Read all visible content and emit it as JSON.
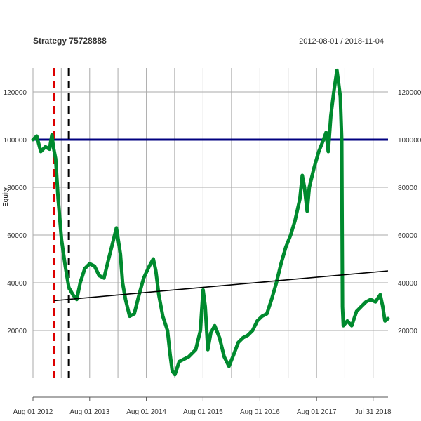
{
  "chart_data": {
    "type": "line",
    "title": "Strategy 75728888",
    "date_range": "2012-08-01 / 2018-11-04",
    "ylabel": "Equity",
    "x_start": "2012-08-01",
    "x_end": "2018-11-04",
    "ylim": [
      0,
      130000
    ],
    "x_tick_labels": [
      {
        "date": "2012-08-01",
        "label": "Aug 01 2012"
      },
      {
        "date": "2013-08-01",
        "label": "Aug 01 2013"
      },
      {
        "date": "2014-08-01",
        "label": "Aug 01 2014"
      },
      {
        "date": "2015-08-01",
        "label": "Aug 01 2015"
      },
      {
        "date": "2016-08-01",
        "label": "Aug 01 2016"
      },
      {
        "date": "2017-08-01",
        "label": "Aug 01 2017"
      },
      {
        "date": "2018-07-31",
        "label": "Jul 31 2018"
      }
    ],
    "y_ticks": [
      20000,
      40000,
      60000,
      80000,
      100000,
      120000
    ],
    "y_tick_labels": [
      "20000",
      "40000",
      "60000",
      "80000",
      "100000",
      "120000"
    ],
    "grid": true,
    "reference_lines": [
      {
        "type": "horizontal",
        "value": 100000,
        "color": "#000080"
      },
      {
        "type": "vertical",
        "date": "2012-12-15",
        "color": "#dd0000",
        "style": "dashed"
      },
      {
        "type": "vertical",
        "date": "2013-03-20",
        "color": "#000000",
        "style": "dashed"
      }
    ],
    "trend_line": {
      "color": "#000000",
      "start": {
        "date": "2012-12-15",
        "y": 32500
      },
      "end": {
        "date": "2018-11-04",
        "y": 45000
      }
    },
    "series": [
      {
        "color": "#008a2e",
        "points": [
          [
            "2012-08-01",
            100000
          ],
          [
            "2012-08-25",
            101500
          ],
          [
            "2012-09-20",
            95000
          ],
          [
            "2012-10-20",
            97000
          ],
          [
            "2012-11-15",
            96000
          ],
          [
            "2012-12-01",
            102000
          ],
          [
            "2012-12-10",
            97000
          ],
          [
            "2012-12-25",
            92000
          ],
          [
            "2013-01-10",
            75000
          ],
          [
            "2013-02-01",
            58000
          ],
          [
            "2013-02-25",
            47000
          ],
          [
            "2013-03-20",
            38000
          ],
          [
            "2013-04-15",
            35000
          ],
          [
            "2013-05-10",
            33000
          ],
          [
            "2013-06-01",
            40000
          ],
          [
            "2013-07-01",
            46000
          ],
          [
            "2013-08-01",
            48000
          ],
          [
            "2013-09-01",
            47000
          ],
          [
            "2013-10-01",
            43000
          ],
          [
            "2013-11-01",
            42000
          ],
          [
            "2013-12-01",
            50000
          ],
          [
            "2014-01-01",
            58000
          ],
          [
            "2014-01-20",
            63000
          ],
          [
            "2014-02-15",
            52000
          ],
          [
            "2014-03-01",
            40000
          ],
          [
            "2014-03-20",
            33000
          ],
          [
            "2014-04-15",
            26000
          ],
          [
            "2014-05-15",
            27000
          ],
          [
            "2014-06-15",
            35000
          ],
          [
            "2014-07-15",
            42000
          ],
          [
            "2014-08-20",
            47000
          ],
          [
            "2014-09-15",
            50000
          ],
          [
            "2014-10-01",
            45000
          ],
          [
            "2014-10-20",
            35000
          ],
          [
            "2014-11-15",
            26000
          ],
          [
            "2014-12-15",
            20000
          ],
          [
            "2015-01-01",
            10000
          ],
          [
            "2015-01-15",
            3000
          ],
          [
            "2015-02-01",
            1500
          ],
          [
            "2015-03-01",
            7000
          ],
          [
            "2015-04-01",
            8000
          ],
          [
            "2015-05-01",
            9000
          ],
          [
            "2015-06-15",
            12000
          ],
          [
            "2015-07-15",
            20000
          ],
          [
            "2015-08-01",
            37000
          ],
          [
            "2015-08-15",
            30000
          ],
          [
            "2015-09-01",
            12000
          ],
          [
            "2015-09-20",
            19000
          ],
          [
            "2015-10-15",
            22000
          ],
          [
            "2015-11-15",
            17000
          ],
          [
            "2015-12-15",
            9000
          ],
          [
            "2016-01-15",
            5000
          ],
          [
            "2016-02-15",
            10000
          ],
          [
            "2016-03-15",
            15000
          ],
          [
            "2016-04-15",
            17000
          ],
          [
            "2016-05-15",
            18000
          ],
          [
            "2016-06-15",
            20000
          ],
          [
            "2016-07-15",
            24000
          ],
          [
            "2016-08-15",
            26000
          ],
          [
            "2016-09-15",
            27000
          ],
          [
            "2016-10-15",
            33000
          ],
          [
            "2016-11-15",
            40000
          ],
          [
            "2016-12-15",
            48000
          ],
          [
            "2017-01-15",
            55000
          ],
          [
            "2017-02-15",
            60000
          ],
          [
            "2017-03-15",
            66000
          ],
          [
            "2017-04-15",
            75000
          ],
          [
            "2017-05-01",
            85000
          ],
          [
            "2017-05-15",
            80000
          ],
          [
            "2017-06-01",
            70000
          ],
          [
            "2017-06-15",
            80000
          ],
          [
            "2017-07-15",
            88000
          ],
          [
            "2017-08-15",
            95000
          ],
          [
            "2017-09-15",
            100000
          ],
          [
            "2017-10-01",
            103000
          ],
          [
            "2017-10-15",
            95000
          ],
          [
            "2017-11-01",
            110000
          ],
          [
            "2017-11-20",
            120000
          ],
          [
            "2017-12-10",
            129000
          ],
          [
            "2018-01-01",
            118000
          ],
          [
            "2018-01-10",
            100000
          ],
          [
            "2018-01-15",
            30000
          ],
          [
            "2018-01-20",
            22000
          ],
          [
            "2018-02-15",
            24000
          ],
          [
            "2018-03-15",
            22000
          ],
          [
            "2018-04-15",
            28000
          ],
          [
            "2018-05-15",
            30000
          ],
          [
            "2018-06-15",
            32000
          ],
          [
            "2018-07-15",
            33000
          ],
          [
            "2018-08-15",
            32000
          ],
          [
            "2018-09-15",
            35000
          ],
          [
            "2018-10-01",
            30000
          ],
          [
            "2018-10-15",
            24000
          ],
          [
            "2018-11-04",
            25000
          ]
        ]
      }
    ]
  }
}
